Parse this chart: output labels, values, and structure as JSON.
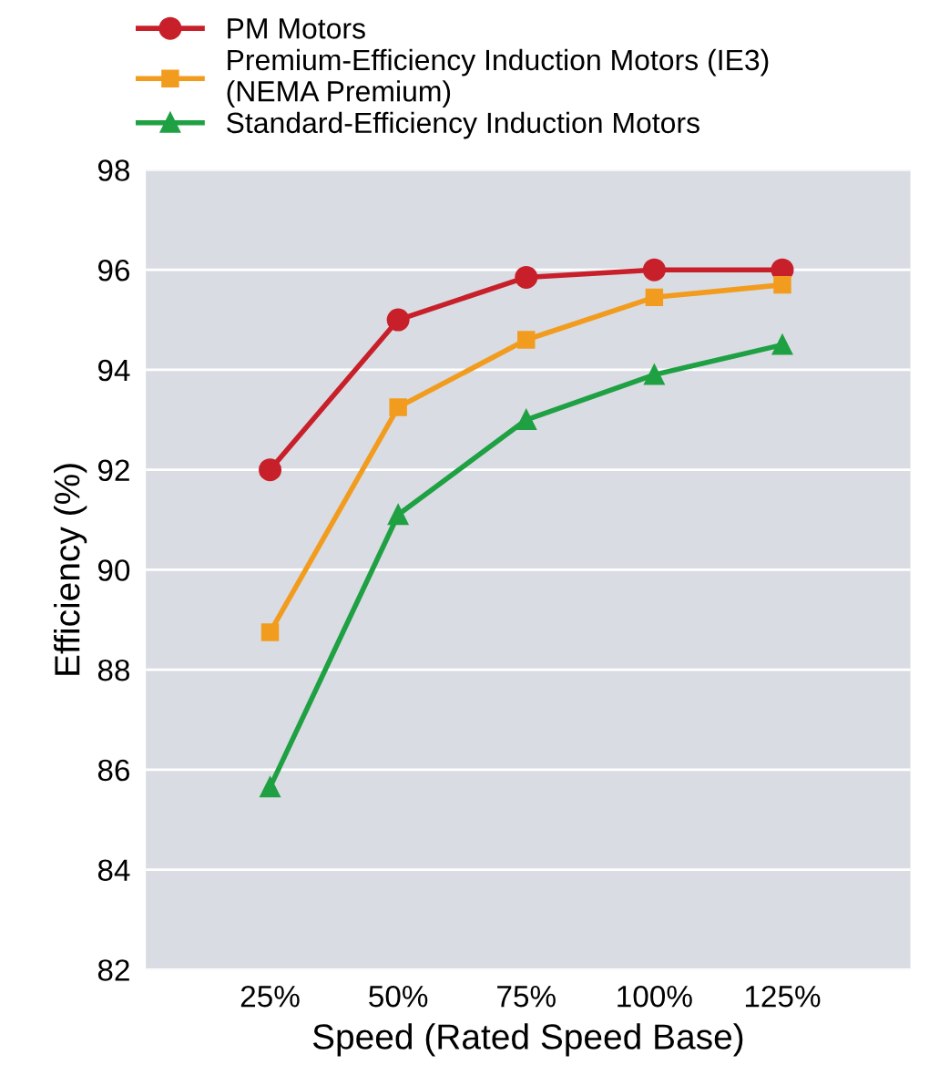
{
  "chart_data": {
    "type": "line",
    "xlabel": "Speed (Rated Speed Base)",
    "ylabel": "Efficiency (%)",
    "categories": [
      "25%",
      "50%",
      "75%",
      "100%",
      "125%"
    ],
    "ylim": [
      82,
      98
    ],
    "yticks": [
      82,
      84,
      86,
      88,
      90,
      92,
      94,
      96,
      98
    ],
    "grid": "y",
    "legend": "top left",
    "line_style": "solid",
    "series": [
      {
        "name": "PM Motors",
        "color": "#c8202a",
        "marker": "circle",
        "values": [
          92.0,
          95.0,
          95.85,
          96.0,
          96.0
        ]
      },
      {
        "name": "Premium-Efficiency Induction Motors (IE3)\n(NEMA Premium)",
        "color": "#f29c1f",
        "marker": "square",
        "values": [
          88.75,
          93.25,
          94.6,
          95.45,
          95.7
        ]
      },
      {
        "name": "Standard-Efficiency Induction Motors",
        "color": "#1fa043",
        "marker": "triangle",
        "values": [
          85.65,
          91.1,
          93.0,
          93.9,
          94.5
        ]
      }
    ]
  }
}
